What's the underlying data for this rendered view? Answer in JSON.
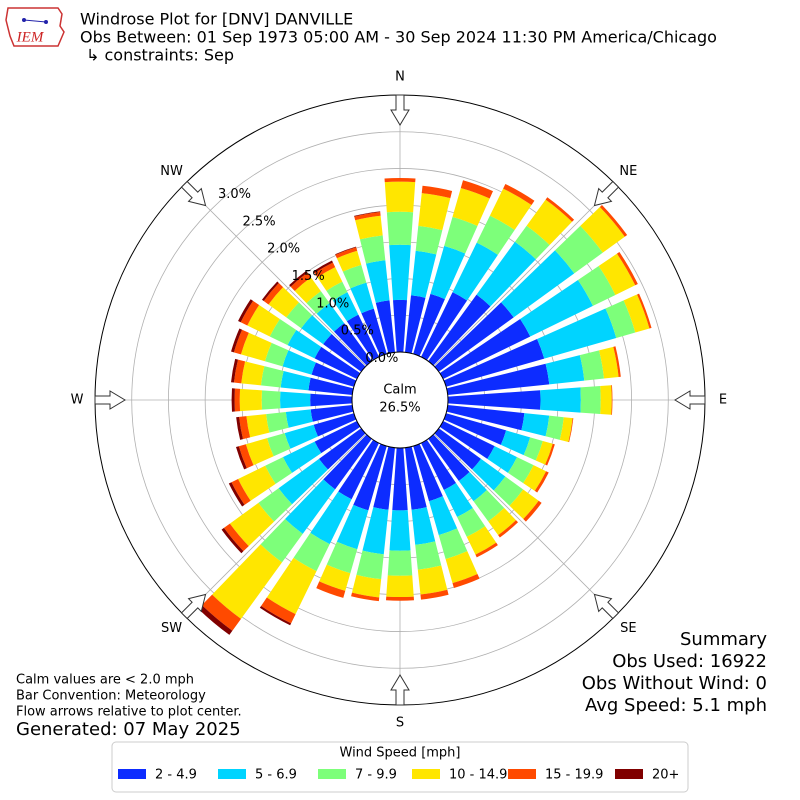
{
  "chart_data": {
    "type": "windrose",
    "logo": "IEM",
    "title": "Windrose Plot for [DNV] DANVILLE",
    "subtitle": "Obs Between: 01 Sep 1973 05:00 AM - 30 Sep 2024 11:30 PM America/Chicago",
    "constraint": "↳ constraints: Sep",
    "x": [
      0,
      10,
      20,
      30,
      40,
      50,
      60,
      70,
      80,
      90,
      100,
      110,
      120,
      130,
      140,
      150,
      160,
      170,
      180,
      190,
      200,
      210,
      220,
      230,
      240,
      250,
      260,
      270,
      280,
      290,
      300,
      310,
      320,
      330,
      340,
      350
    ],
    "xticks": [
      {
        "value": 0,
        "label": "N"
      },
      {
        "value": 45,
        "label": "NE"
      },
      {
        "value": 90,
        "label": "E"
      },
      {
        "value": 135,
        "label": "SE"
      },
      {
        "value": 180,
        "label": "S"
      },
      {
        "value": 225,
        "label": "SW"
      },
      {
        "value": 270,
        "label": "W"
      },
      {
        "value": 315,
        "label": "NW"
      }
    ],
    "ylim": [
      0,
      3.5
    ],
    "yticks": [
      {
        "value": 0,
        "label": "0.0%"
      },
      {
        "value": 0.5,
        "label": "0.5%"
      },
      {
        "value": 1,
        "label": "1.0%"
      },
      {
        "value": 1.5,
        "label": "1.5%"
      },
      {
        "value": 2,
        "label": "2.0%"
      },
      {
        "value": 2.5,
        "label": "2.5%"
      },
      {
        "value": 3,
        "label": "3.0%"
      }
    ],
    "grid": true,
    "calm": {
      "label": "Calm",
      "value": 26.5,
      "value_label": "26.5%"
    },
    "legend_title": "Wind Speed [mph]",
    "series": [
      {
        "name": "2 - 4.9",
        "color": "#0d2cff",
        "values": [
          0.71,
          0.78,
          0.85,
          0.98,
          1.12,
          1.26,
          1.32,
          1.39,
          1.39,
          1.26,
          1.05,
          0.85,
          0.78,
          0.71,
          0.71,
          0.71,
          0.78,
          0.85,
          0.85,
          0.85,
          0.91,
          0.85,
          0.85,
          0.71,
          0.64,
          0.57,
          0.57,
          0.57,
          0.6,
          0.6,
          0.64,
          0.64,
          0.64,
          0.64,
          0.64,
          0.71
        ]
      },
      {
        "name": "5 - 6.9",
        "color": "#00d4ff",
        "values": [
          0.75,
          0.61,
          0.68,
          0.75,
          0.89,
          1.02,
          0.95,
          1.02,
          0.48,
          0.55,
          0.34,
          0.34,
          0.34,
          0.41,
          0.34,
          0.41,
          0.48,
          0.48,
          0.55,
          0.61,
          0.55,
          0.68,
          0.75,
          0.68,
          0.48,
          0.41,
          0.34,
          0.41,
          0.38,
          0.41,
          0.41,
          0.37,
          0.34,
          0.34,
          0.37,
          0.55
        ]
      },
      {
        "name": "7 - 9.9",
        "color": "#7dff7a",
        "values": [
          0.45,
          0.34,
          0.41,
          0.41,
          0.27,
          0.48,
          0.34,
          0.27,
          0.27,
          0.27,
          0.2,
          0.18,
          0.25,
          0.3,
          0.34,
          0.3,
          0.34,
          0.34,
          0.34,
          0.34,
          0.34,
          0.41,
          0.48,
          0.34,
          0.27,
          0.25,
          0.27,
          0.25,
          0.27,
          0.25,
          0.27,
          0.25,
          0.2,
          0.16,
          0.25,
          0.34
        ]
      },
      {
        "name": "10 - 14.9",
        "color": "#ffe600",
        "values": [
          0.41,
          0.45,
          0.41,
          0.41,
          0.44,
          0.37,
          0.3,
          0.2,
          0.2,
          0.15,
          0.12,
          0.14,
          0.19,
          0.26,
          0.23,
          0.27,
          0.34,
          0.34,
          0.29,
          0.25,
          0.25,
          0.65,
          0.95,
          0.48,
          0.41,
          0.3,
          0.27,
          0.3,
          0.27,
          0.34,
          0.34,
          0.3,
          0.23,
          0.22,
          0.2,
          0.27
        ]
      },
      {
        "name": "15 - 19.9",
        "color": "#ff4a00",
        "values": [
          0.05,
          0.1,
          0.11,
          0.07,
          0.04,
          0.04,
          0.04,
          0.03,
          0.03,
          0.01,
          0.01,
          0.03,
          0.04,
          0.05,
          0.04,
          0.04,
          0.07,
          0.07,
          0.05,
          0.05,
          0.1,
          0.14,
          0.2,
          0.1,
          0.1,
          0.1,
          0.1,
          0.07,
          0.1,
          0.1,
          0.1,
          0.08,
          0.08,
          0.07,
          0.05,
          0.05
        ]
      },
      {
        "name": "20+",
        "color": "#800000",
        "values": [
          0,
          0,
          0,
          0,
          0,
          0,
          0,
          0,
          0,
          0,
          0,
          0,
          0,
          0,
          0,
          0,
          0,
          0,
          0,
          0,
          0,
          0.03,
          0.07,
          0.04,
          0.04,
          0.04,
          0.04,
          0.04,
          0.04,
          0.04,
          0.04,
          0.03,
          0.03,
          0.03,
          0.01,
          0.01
        ]
      }
    ],
    "summary": [
      "Summary",
      "Obs Used: 16922",
      "Obs Without Wind: 0",
      "Avg Speed: 5.1 mph"
    ],
    "notes": [
      "Calm values are < 2.0 mph",
      "Bar Convention: Meteorology",
      "Flow arrows relative to plot center."
    ],
    "generated": "Generated: 07 May 2025"
  }
}
